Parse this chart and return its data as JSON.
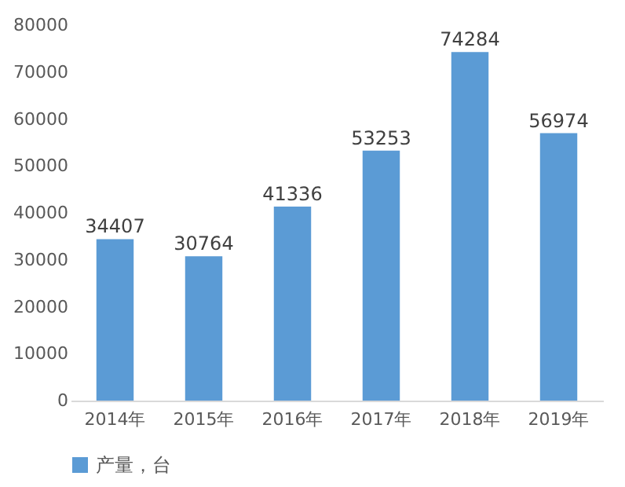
{
  "chart_data": {
    "type": "bar",
    "categories": [
      "2014年",
      "2015年",
      "2016年",
      "2017年",
      "2018年",
      "2019年"
    ],
    "series": [
      {
        "name": "产量，台",
        "color": "#5b9bd5",
        "values": [
          34407,
          30764,
          41336,
          53253,
          74284,
          56974
        ]
      }
    ],
    "ylim": [
      0,
      80000
    ],
    "yticks": [
      0,
      10000,
      20000,
      30000,
      40000,
      50000,
      60000,
      70000,
      80000
    ],
    "grid": false,
    "legend": "bottom",
    "data_labels": true
  }
}
